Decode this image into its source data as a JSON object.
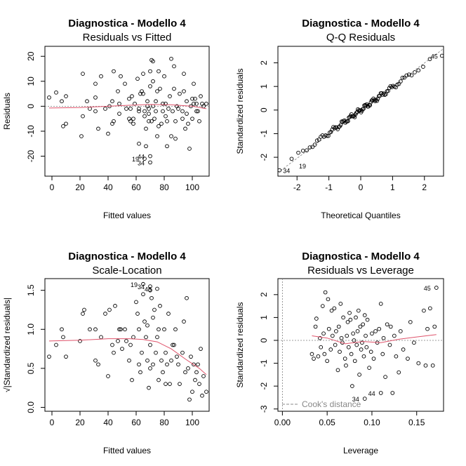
{
  "colors": {
    "smooth": "#DF536B",
    "reference": "#7f7f7f",
    "points": "#000000"
  },
  "chart_data": [
    {
      "type": "scatter",
      "title": "Diagnostica - Modello 4",
      "subtitle": "Residuals vs Fitted",
      "xlabel": "Fitted values",
      "ylabel": "Residuals",
      "xlim": [
        -5,
        112
      ],
      "ylim": [
        -28,
        24
      ],
      "xticks": [
        0,
        20,
        40,
        60,
        80,
        100
      ],
      "yticks": [
        -20,
        -10,
        0,
        10,
        20
      ],
      "hline": 0,
      "points": [
        [
          -2,
          3.5
        ],
        [
          3,
          5.5
        ],
        [
          7,
          2
        ],
        [
          8,
          -8
        ],
        [
          10,
          -7
        ],
        [
          10,
          4
        ],
        [
          21,
          -12
        ],
        [
          22,
          -4
        ],
        [
          22,
          13
        ],
        [
          25,
          2
        ],
        [
          27,
          -1
        ],
        [
          31,
          -2
        ],
        [
          31,
          9
        ],
        [
          31,
          3.5
        ],
        [
          33,
          -9
        ],
        [
          35,
          12
        ],
        [
          38,
          -1
        ],
        [
          40,
          -11
        ],
        [
          41,
          0
        ],
        [
          43,
          2
        ],
        [
          43,
          -7
        ],
        [
          44,
          -6
        ],
        [
          44,
          14
        ],
        [
          47,
          6
        ],
        [
          48,
          -3
        ],
        [
          48,
          1
        ],
        [
          49,
          12
        ],
        [
          52,
          9
        ],
        [
          53,
          -1
        ],
        [
          55,
          -5
        ],
        [
          55,
          3
        ],
        [
          56,
          -6
        ],
        [
          56,
          -1
        ],
        [
          57,
          4
        ],
        [
          58,
          -7
        ],
        [
          58,
          -5
        ],
        [
          59,
          1
        ],
        [
          61,
          11
        ],
        [
          62,
          -15
        ],
        [
          62,
          -2
        ],
        [
          62,
          -1
        ],
        [
          63,
          5
        ],
        [
          64,
          6
        ],
        [
          65,
          13
        ],
        [
          65,
          5
        ],
        [
          66,
          -2
        ],
        [
          66,
          -4
        ],
        [
          67,
          -9
        ],
        [
          67,
          -16
        ],
        [
          68,
          2
        ],
        [
          68,
          0
        ],
        [
          69,
          -6
        ],
        [
          69,
          -3
        ],
        [
          69,
          -1
        ],
        [
          70,
          8
        ],
        [
          70,
          14
        ],
        [
          71,
          18.5
        ],
        [
          71,
          -6
        ],
        [
          72,
          0
        ],
        [
          72,
          10
        ],
        [
          72,
          18
        ],
        [
          73,
          -5
        ],
        [
          74,
          2
        ],
        [
          74,
          -2
        ],
        [
          75,
          -12
        ],
        [
          75,
          6
        ],
        [
          76,
          14
        ],
        [
          76,
          -8
        ],
        [
          77,
          7
        ],
        [
          78,
          -7
        ],
        [
          79,
          -2
        ],
        [
          79,
          1
        ],
        [
          80,
          12
        ],
        [
          81,
          1
        ],
        [
          81,
          -4
        ],
        [
          82,
          -16
        ],
        [
          82,
          -6
        ],
        [
          83,
          -1
        ],
        [
          84,
          4
        ],
        [
          85,
          -12
        ],
        [
          85,
          19
        ],
        [
          86,
          -2
        ],
        [
          87,
          7
        ],
        [
          87,
          16
        ],
        [
          88,
          -13
        ],
        [
          88,
          -6
        ],
        [
          89,
          0
        ],
        [
          90,
          -1
        ],
        [
          91,
          5
        ],
        [
          93,
          -2
        ],
        [
          93,
          -5
        ],
        [
          94,
          6
        ],
        [
          94,
          13
        ],
        [
          95,
          -9
        ],
        [
          96,
          2
        ],
        [
          96,
          -3
        ],
        [
          97,
          -7
        ],
        [
          98,
          -17
        ],
        [
          99,
          0
        ],
        [
          100,
          3
        ],
        [
          100,
          -5
        ],
        [
          101,
          9
        ],
        [
          101,
          1
        ],
        [
          102,
          3
        ],
        [
          103,
          1
        ],
        [
          103,
          -2
        ],
        [
          104,
          -2
        ],
        [
          105,
          -6
        ],
        [
          106,
          4
        ],
        [
          107,
          1
        ],
        [
          108,
          0
        ],
        [
          110,
          1
        ],
        [
          66,
          -21
        ],
        [
          70,
          -20
        ],
        [
          70,
          -22.5
        ]
      ],
      "smooth": [
        [
          -2,
          -0.7
        ],
        [
          20,
          -0.5
        ],
        [
          40,
          0
        ],
        [
          55,
          0.4
        ],
        [
          70,
          0.7
        ],
        [
          85,
          0.6
        ],
        [
          100,
          0
        ],
        [
          110,
          -1
        ]
      ],
      "point_labels": [
        {
          "x": 66,
          "y": -21,
          "label": "19"
        },
        {
          "x": 70,
          "y": -20,
          "label": "44"
        },
        {
          "x": 70,
          "y": -22.5,
          "label": "34"
        }
      ]
    },
    {
      "type": "scatter",
      "title": "Diagnostica - Modello 4",
      "subtitle": "Q-Q Residuals",
      "xlabel": "Theoretical Quantiles",
      "ylabel": "Standardized residuals",
      "xlim": [
        -2.6,
        2.6
      ],
      "ylim": [
        -2.8,
        2.7
      ],
      "xticks": [
        -2,
        -1,
        0,
        1,
        2
      ],
      "yticks": [
        -2,
        -1,
        0,
        1,
        2
      ],
      "reference_line": [
        [
          -2.6,
          -2.65
        ],
        [
          2.6,
          2.6
        ]
      ],
      "qq_ends": [
        [
          -2.55,
          -2.55
        ],
        [
          2.55,
          2.3
        ]
      ],
      "point_labels": [
        {
          "x": -2.55,
          "y": -2.55,
          "label": "34"
        },
        {
          "x": -2.05,
          "y": -2.35,
          "label": "19"
        },
        {
          "x": 2.55,
          "y": 2.3,
          "label": "45"
        }
      ]
    },
    {
      "type": "scatter",
      "title": "Diagnostica - Modello 4",
      "subtitle": "Scale-Location",
      "xlabel": "Fitted values",
      "ylabel": "√|Standardized residuals|",
      "xlim": [
        -5,
        112
      ],
      "ylim": [
        -0.05,
        1.65
      ],
      "xticks": [
        0,
        20,
        40,
        60,
        80,
        100
      ],
      "yticks": [
        0.0,
        0.5,
        1.0,
        1.5
      ],
      "points": [
        [
          -2,
          0.65
        ],
        [
          3,
          0.8
        ],
        [
          7,
          1.0
        ],
        [
          8,
          0.9
        ],
        [
          10,
          0.65
        ],
        [
          20,
          0.85
        ],
        [
          22,
          1.2
        ],
        [
          23,
          1.25
        ],
        [
          27,
          1.0
        ],
        [
          31,
          1.0
        ],
        [
          31,
          0.6
        ],
        [
          33,
          0.55
        ],
        [
          35,
          0.9
        ],
        [
          38,
          1.2
        ],
        [
          40,
          0.4
        ],
        [
          41,
          1.25
        ],
        [
          43,
          0.8
        ],
        [
          44,
          0.7
        ],
        [
          45,
          1.3
        ],
        [
          47,
          0.85
        ],
        [
          48,
          1.0
        ],
        [
          49,
          1.0
        ],
        [
          50,
          0.75
        ],
        [
          52,
          1.0
        ],
        [
          53,
          0.85
        ],
        [
          55,
          0.6
        ],
        [
          56,
          0.8
        ],
        [
          57,
          0.35
        ],
        [
          58,
          0.9
        ],
        [
          60,
          1.35
        ],
        [
          61,
          1.2
        ],
        [
          62,
          1.0
        ],
        [
          62,
          0.55
        ],
        [
          63,
          0.45
        ],
        [
          64,
          0.7
        ],
        [
          65,
          1.45
        ],
        [
          66,
          1.1
        ],
        [
          67,
          0.9
        ],
        [
          68,
          0.6
        ],
        [
          68,
          1.05
        ],
        [
          69,
          0.25
        ],
        [
          70,
          0.5
        ],
        [
          70,
          0.8
        ],
        [
          71,
          1.4
        ],
        [
          72,
          0.55
        ],
        [
          72,
          1.15
        ],
        [
          73,
          1.25
        ],
        [
          74,
          0.7
        ],
        [
          75,
          0.9
        ],
        [
          76,
          1.0
        ],
        [
          76,
          0.35
        ],
        [
          77,
          1.3
        ],
        [
          78,
          0.6
        ],
        [
          79,
          0.45
        ],
        [
          80,
          1.0
        ],
        [
          81,
          0.3
        ],
        [
          81,
          0.7
        ],
        [
          82,
          0.55
        ],
        [
          83,
          1.2
        ],
        [
          84,
          0.3
        ],
        [
          85,
          0.6
        ],
        [
          86,
          0.8
        ],
        [
          87,
          0.8
        ],
        [
          88,
          1.0
        ],
        [
          89,
          0.65
        ],
        [
          90,
          0.55
        ],
        [
          91,
          0.3
        ],
        [
          93,
          0.7
        ],
        [
          94,
          1.1
        ],
        [
          95,
          0.45
        ],
        [
          96,
          1.4
        ],
        [
          97,
          0.5
        ],
        [
          98,
          0.1
        ],
        [
          99,
          0.65
        ],
        [
          100,
          0.2
        ],
        [
          101,
          0.55
        ],
        [
          102,
          0.35
        ],
        [
          103,
          0.45
        ],
        [
          104,
          0.55
        ],
        [
          105,
          0.3
        ],
        [
          106,
          0.75
        ],
        [
          107,
          0.15
        ],
        [
          108,
          0.4
        ],
        [
          110,
          0.2
        ],
        [
          65,
          1.58
        ],
        [
          70,
          1.55
        ],
        [
          75,
          1.52
        ],
        [
          70,
          1.5
        ]
      ],
      "smooth": [
        [
          -2,
          0.85
        ],
        [
          20,
          0.86
        ],
        [
          40,
          0.88
        ],
        [
          55,
          0.88
        ],
        [
          65,
          0.87
        ],
        [
          75,
          0.84
        ],
        [
          85,
          0.75
        ],
        [
          95,
          0.62
        ],
        [
          105,
          0.5
        ],
        [
          110,
          0.42
        ]
      ],
      "point_labels": [
        {
          "x": 65,
          "y": 1.58,
          "label": "19"
        },
        {
          "x": 70,
          "y": 1.55,
          "label": "34"
        },
        {
          "x": 75,
          "y": 1.52,
          "label": "45"
        }
      ]
    },
    {
      "type": "scatter",
      "title": "Diagnostica - Modello 4",
      "subtitle": "Residuals vs Leverage",
      "xlabel": "Leverage",
      "ylabel": "Standardized residuals",
      "xlim": [
        -0.005,
        0.18
      ],
      "ylim": [
        -3.1,
        2.7
      ],
      "xticks": [
        0.0,
        0.05,
        0.1,
        0.15
      ],
      "yticks": [
        -3,
        -2,
        -1,
        0,
        1,
        2
      ],
      "hline": 0,
      "vline": 0,
      "legend": "Cook's distance",
      "points": [
        [
          0.033,
          -0.6
        ],
        [
          0.035,
          -0.8
        ],
        [
          0.037,
          0.6
        ],
        [
          0.038,
          0.95
        ],
        [
          0.04,
          -0.7
        ],
        [
          0.042,
          0.1
        ],
        [
          0.043,
          -0.3
        ],
        [
          0.045,
          1.5
        ],
        [
          0.046,
          0.3
        ],
        [
          0.047,
          -0.6
        ],
        [
          0.048,
          2.1
        ],
        [
          0.05,
          -0.9
        ],
        [
          0.051,
          1.8
        ],
        [
          0.052,
          0.5
        ],
        [
          0.054,
          -0.4
        ],
        [
          0.055,
          1.3
        ],
        [
          0.056,
          0.2
        ],
        [
          0.058,
          1.4
        ],
        [
          0.059,
          -0.2
        ],
        [
          0.06,
          0.4
        ],
        [
          0.062,
          -1.3
        ],
        [
          0.063,
          0.6
        ],
        [
          0.064,
          -0.5
        ],
        [
          0.065,
          1.6
        ],
        [
          0.066,
          0.1
        ],
        [
          0.067,
          -0.1
        ],
        [
          0.068,
          1.0
        ],
        [
          0.07,
          -0.8
        ],
        [
          0.071,
          -1.1
        ],
        [
          0.072,
          0.2
        ],
        [
          0.073,
          0.8
        ],
        [
          0.074,
          -0.3
        ],
        [
          0.075,
          1.2
        ],
        [
          0.076,
          0.9
        ],
        [
          0.077,
          -0.6
        ],
        [
          0.078,
          -2.0
        ],
        [
          0.079,
          0.3
        ],
        [
          0.08,
          0.0
        ],
        [
          0.081,
          -0.9
        ],
        [
          0.082,
          1.0
        ],
        [
          0.083,
          -0.2
        ],
        [
          0.084,
          0.4
        ],
        [
          0.085,
          1.3
        ],
        [
          0.086,
          -1.5
        ],
        [
          0.087,
          0.6
        ],
        [
          0.088,
          -0.4
        ],
        [
          0.089,
          -0.1
        ],
        [
          0.09,
          0.7
        ],
        [
          0.091,
          -0.7
        ],
        [
          0.092,
          1.1
        ],
        [
          0.093,
          0.2
        ],
        [
          0.094,
          -0.3
        ],
        [
          0.095,
          0.9
        ],
        [
          0.097,
          -1.2
        ],
        [
          0.099,
          -0.5
        ],
        [
          0.1,
          0.3
        ],
        [
          0.102,
          -0.8
        ],
        [
          0.104,
          0.4
        ],
        [
          0.106,
          -0.1
        ],
        [
          0.108,
          0.5
        ],
        [
          0.11,
          1.6
        ],
        [
          0.112,
          -0.6
        ],
        [
          0.113,
          0.1
        ],
        [
          0.115,
          -1.6
        ],
        [
          0.117,
          0.7
        ],
        [
          0.12,
          -0.2
        ],
        [
          0.121,
          0.6
        ],
        [
          0.123,
          -2.3
        ],
        [
          0.125,
          0.2
        ],
        [
          0.127,
          -0.7
        ],
        [
          0.13,
          -1.4
        ],
        [
          0.132,
          0.4
        ],
        [
          0.135,
          -0.4
        ],
        [
          0.14,
          -0.8
        ],
        [
          0.143,
          0.8
        ],
        [
          0.147,
          -0.1
        ],
        [
          0.152,
          -1.0
        ],
        [
          0.158,
          1.3
        ],
        [
          0.16,
          -1.1
        ],
        [
          0.162,
          0.5
        ],
        [
          0.165,
          1.4
        ],
        [
          0.168,
          -1.1
        ],
        [
          0.17,
          0.6
        ],
        [
          0.092,
          -2.55
        ],
        [
          0.11,
          -2.3
        ],
        [
          0.172,
          2.3
        ]
      ],
      "smooth": [
        [
          0.033,
          0.2
        ],
        [
          0.05,
          0.1
        ],
        [
          0.07,
          -0.15
        ],
        [
          0.09,
          -0.05
        ],
        [
          0.11,
          -0.1
        ],
        [
          0.13,
          0.05
        ],
        [
          0.15,
          0.15
        ],
        [
          0.172,
          0.25
        ]
      ],
      "point_labels": [
        {
          "x": 0.092,
          "y": -2.55,
          "label": "34"
        },
        {
          "x": 0.11,
          "y": -2.3,
          "label": "44"
        },
        {
          "x": 0.172,
          "y": 2.3,
          "label": "45"
        }
      ]
    }
  ]
}
